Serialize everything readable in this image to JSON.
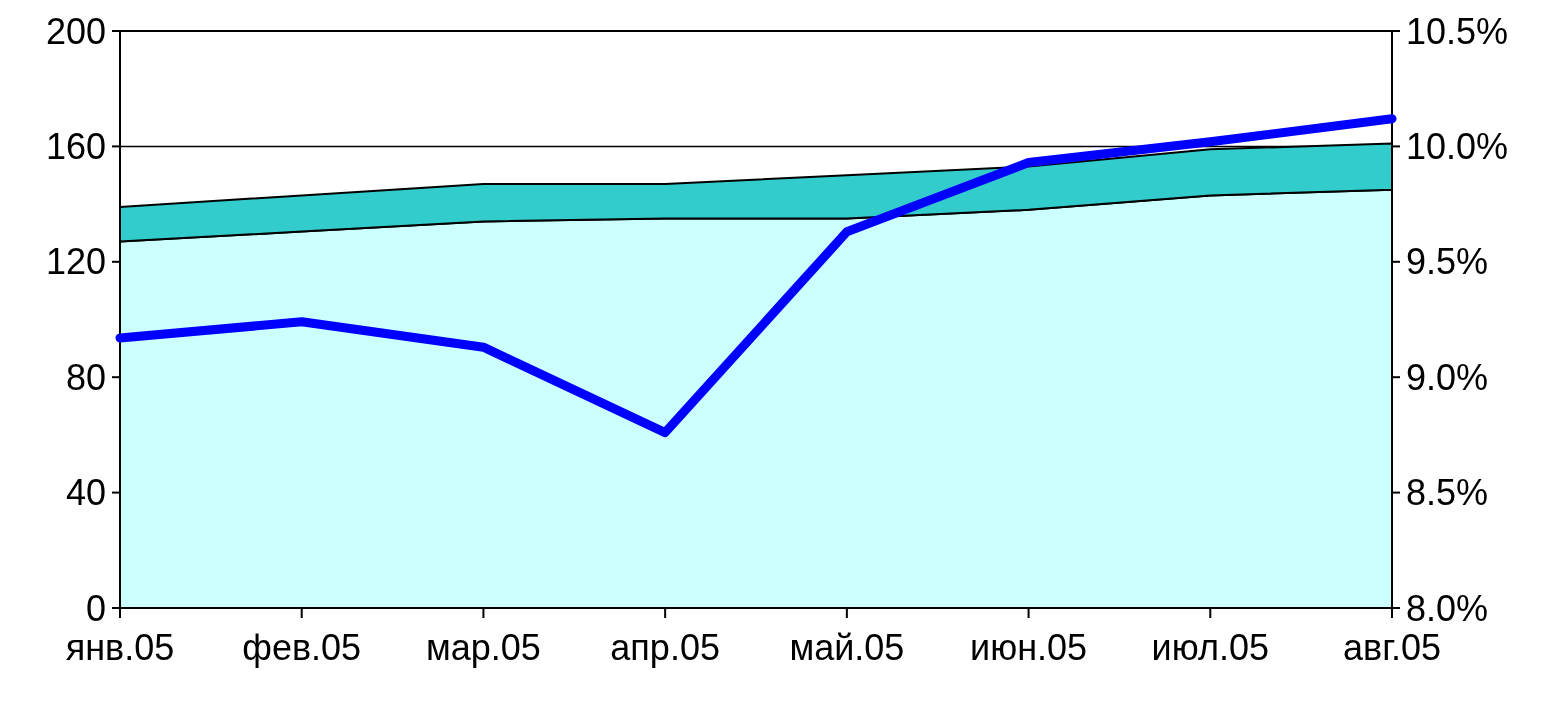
{
  "chart_data": {
    "type": "area",
    "stacked": true,
    "categories": [
      "янв.05",
      "фев.05",
      "мар.05",
      "апр.05",
      "май.05",
      "июн.05",
      "июл.05",
      "авг.05"
    ],
    "series": [
      {
        "color": "#ccffff",
        "values": [
          127,
          130.5,
          134,
          135,
          135,
          138,
          143,
          145
        ]
      },
      {
        "color": "#33cccc",
        "values": [
          12,
          12.5,
          13,
          12,
          15,
          15,
          16,
          16
        ]
      },
      {
        "type": "line",
        "axis": "y2",
        "color": "#0000ff",
        "values": [
          9.17,
          9.24,
          9.13,
          8.76,
          9.63,
          9.93,
          10.02,
          10.12
        ]
      }
    ],
    "ylim": [
      0,
      200
    ],
    "yticks": [
      0,
      40,
      80,
      120,
      160,
      200
    ],
    "y2lim": [
      8.0,
      10.5
    ],
    "y2ticks": [
      {
        "value": 8.0,
        "label": "8.0%"
      },
      {
        "value": 8.5,
        "label": "8.5%"
      },
      {
        "value": 9.0,
        "label": "9.0%"
      },
      {
        "value": 9.5,
        "label": "9.5%"
      },
      {
        "value": 10.0,
        "label": "10.0%"
      },
      {
        "value": 10.5,
        "label": "10.5%"
      }
    ],
    "grid": "y",
    "marker": "none",
    "line_style": "solid"
  }
}
